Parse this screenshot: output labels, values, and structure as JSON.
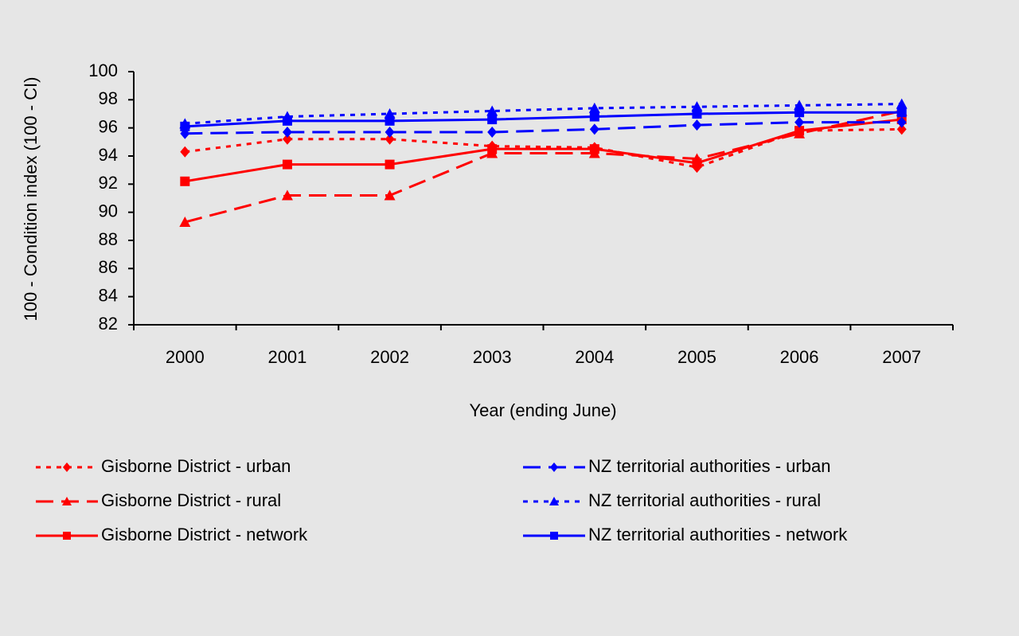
{
  "chart_data": {
    "type": "line",
    "x_label": "Year (ending June)",
    "y_label": "100 - Condition index (100 - CI)",
    "categories": [
      "2000",
      "2001",
      "2002",
      "2003",
      "2004",
      "2005",
      "2006",
      "2007"
    ],
    "ylim": [
      82,
      100
    ],
    "yticks": [
      82,
      84,
      86,
      88,
      90,
      92,
      94,
      96,
      98,
      100
    ],
    "grid": false,
    "series": [
      {
        "name": "Gisborne District - urban",
        "color": "#ff0000",
        "dash": "dotted",
        "marker": "diamond",
        "values": [
          94.3,
          95.2,
          95.2,
          94.7,
          94.6,
          93.2,
          95.8,
          95.9
        ]
      },
      {
        "name": "Gisborne District - rural",
        "color": "#ff0000",
        "dash": "dashed",
        "marker": "triangle",
        "values": [
          89.3,
          91.2,
          91.2,
          94.2,
          94.2,
          93.8,
          95.6,
          97.2
        ]
      },
      {
        "name": "Gisborne District - network",
        "color": "#ff0000",
        "dash": "solid",
        "marker": "square",
        "values": [
          92.2,
          93.4,
          93.4,
          94.5,
          94.5,
          93.5,
          95.8,
          96.6
        ]
      },
      {
        "name": "NZ territorial authorities - urban",
        "color": "#0000ff",
        "dash": "dashed",
        "marker": "diamond",
        "values": [
          95.6,
          95.7,
          95.7,
          95.7,
          95.9,
          96.2,
          96.4,
          96.4
        ]
      },
      {
        "name": "NZ territorial authorities - rural",
        "color": "#0000ff",
        "dash": "dotted",
        "marker": "triangle",
        "values": [
          96.3,
          96.8,
          97.0,
          97.2,
          97.4,
          97.5,
          97.6,
          97.7
        ]
      },
      {
        "name": "NZ territorial authorities - network",
        "color": "#0000ff",
        "dash": "solid",
        "marker": "square",
        "values": [
          96.1,
          96.5,
          96.5,
          96.6,
          96.8,
          97.0,
          97.1,
          97.1
        ]
      }
    ]
  }
}
